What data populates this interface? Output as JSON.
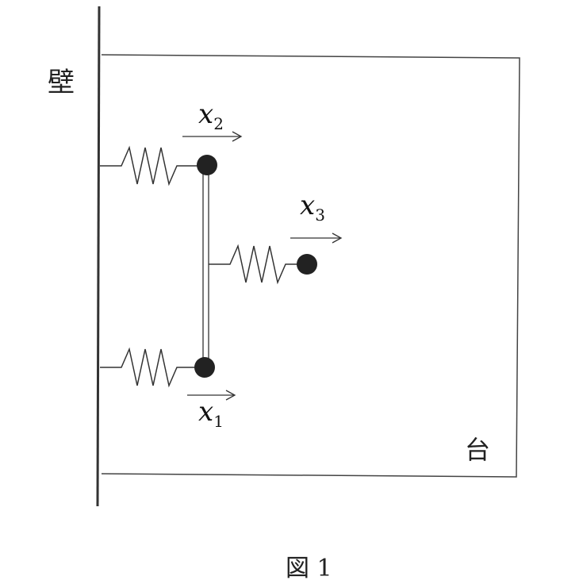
{
  "labels": {
    "wall": "壁",
    "table": "台",
    "x1_var": "x",
    "x1_sub": "1",
    "x2_var": "x",
    "x2_sub": "2",
    "x3_var": "x",
    "x3_sub": "3"
  },
  "caption": "図 1",
  "colors": {
    "line": "#333333",
    "mass": "#222222",
    "background": "#ffffff"
  }
}
